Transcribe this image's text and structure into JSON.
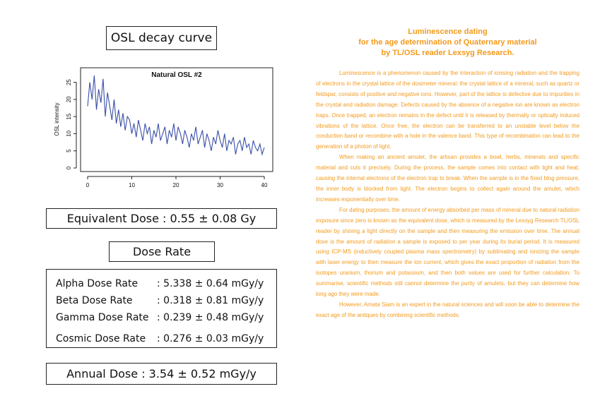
{
  "left": {
    "osl_title": "OSL decay curve",
    "equivalent_dose": "Equivalent Dose : 0.55 ± 0.08 Gy",
    "dose_rate_title": "Dose Rate",
    "dose_rates": [
      {
        "label": "Alpha Dose Rate",
        "value": ": 5.338 ± 0.64 mGy/y"
      },
      {
        "label": "Beta Dose Rate",
        "value": ": 0.318 ± 0.81 mGy/y"
      },
      {
        "label": "Gamma Dose Rate",
        "value": ": 0.239 ± 0.48 mGy/y"
      },
      {
        "label": "Cosmic Dose Rate",
        "value": ": 0.276 ± 0.03 mGy/y"
      }
    ],
    "annual_dose": "Annual Dose : 3.54 ± 0.52 mGy/y"
  },
  "chart_data": {
    "type": "line",
    "title": "Natural OSL #2",
    "xlabel": "",
    "ylabel": "OSL intensity",
    "xlim": [
      0,
      40
    ],
    "ylim": [
      0,
      28
    ],
    "xticks": [
      "0",
      "10",
      "20",
      "30",
      "40"
    ],
    "yticks": [
      "0",
      "5",
      "10",
      "15",
      "20",
      "25"
    ],
    "grid": false,
    "color": "#3a4fa8",
    "series": [
      {
        "x": [
          0.0,
          0.5,
          1.0,
          1.5,
          2.0,
          2.5,
          3.0,
          3.5,
          4.0,
          4.5,
          5.0,
          5.5,
          6.0,
          6.5,
          7.0,
          7.5,
          8.0,
          8.5,
          9.0,
          9.5,
          10.0,
          10.5,
          11.0,
          11.5,
          12.0,
          12.5,
          13.0,
          13.5,
          14.0,
          14.5,
          15.0,
          15.5,
          16.0,
          16.5,
          17.0,
          17.5,
          18.0,
          18.5,
          19.0,
          19.5,
          20.0,
          20.5,
          21.0,
          21.5,
          22.0,
          22.5,
          23.0,
          23.5,
          24.0,
          24.5,
          25.0,
          25.5,
          26.0,
          26.5,
          27.0,
          27.5,
          28.0,
          28.5,
          29.0,
          29.5,
          30.0,
          30.5,
          31.0,
          31.5,
          32.0,
          32.5,
          33.0,
          33.5,
          34.0,
          34.5,
          35.0,
          35.5,
          36.0,
          36.5,
          37.0,
          37.5,
          38.0,
          38.5,
          39.0,
          39.5,
          40.0
        ],
        "y": [
          18,
          25,
          20,
          27,
          17,
          23,
          19,
          26,
          15,
          22,
          18,
          14,
          20,
          13,
          17,
          12,
          16,
          11,
          15,
          14,
          10,
          13,
          9,
          14,
          11,
          8,
          13,
          10,
          12,
          7,
          11,
          9,
          13,
          8,
          10,
          12,
          7,
          11,
          9,
          13,
          8,
          12,
          10,
          7,
          11,
          9,
          6,
          10,
          8,
          12,
          7,
          9,
          11,
          6,
          10,
          8,
          5,
          9,
          7,
          11,
          8,
          6,
          10,
          5,
          8,
          7,
          9,
          4,
          7,
          8,
          5,
          9,
          6,
          7,
          4,
          8,
          6,
          5,
          7,
          4,
          6
        ]
      }
    ]
  },
  "right": {
    "title_lines": [
      "Luminescence dating",
      "for the age determination of Quaternary material",
      "by TL/OSL reader Lexsyg Research."
    ],
    "paragraphs": [
      "Luminescence is a phenomenon caused by the interaction of ionising radiation and the trapping of electrons in the crystal lattice of the dosimeter mineral. the crystal lattice of a mineral, such as quartz or feldspar, consists of positive and negative ions. However, part of the lattice is defective due to impurities in the crystal and radiation damage. Defects caused by the absence of a negative ion are known as electron traps. Once trapped, an electron remains in the defect until it is released by thermally or optically induced vibrations of the lattice. Once free, the electron can be transferred to an unstable level below the conduction band or recombine with a hole in the valence band. This type of recombination can lead to the generation of a photon of light.",
      "When making an ancient amulet, the artisan provides a bowl, herbs, minerals and specific material and cuts it precisely. During the process, the sample comes into contact with light and heat, causing the internal electrons of the electron trap to break. When the sample is in the fixed blog pressure, the inner body is blocked from light. The electron begins to collect again around the amulet, which increases exponentially over time.",
      "For dating purposes, the amount of energy absorbed per mass of mineral due to natural radiation exposure since zero is known as the equivalent dose, which is measured by the Lexsyg Research TL/OSL reader by shining a light directly on the sample and then measuring the emission over time. The annual dose is the amount of radiation a sample is exposed to per year during its burial period. It is measured using ICP-MS (inductively coupled plasma mass spectrometry) by sublimating and ionizing the sample with laser energy to then measure the ion current, which gives the exact proportion of radiation from the isotopes uranium, thorium and potassium, and then both values are used for further calculation. To summarise, scientific methods still cannot determine the purity of amulets, but they can determine how long ago they were made.",
      "However, Amata Siam is an expert in the natural sciences and will soon be able to determine the exact age of the antiques by combining scientific methods."
    ]
  }
}
